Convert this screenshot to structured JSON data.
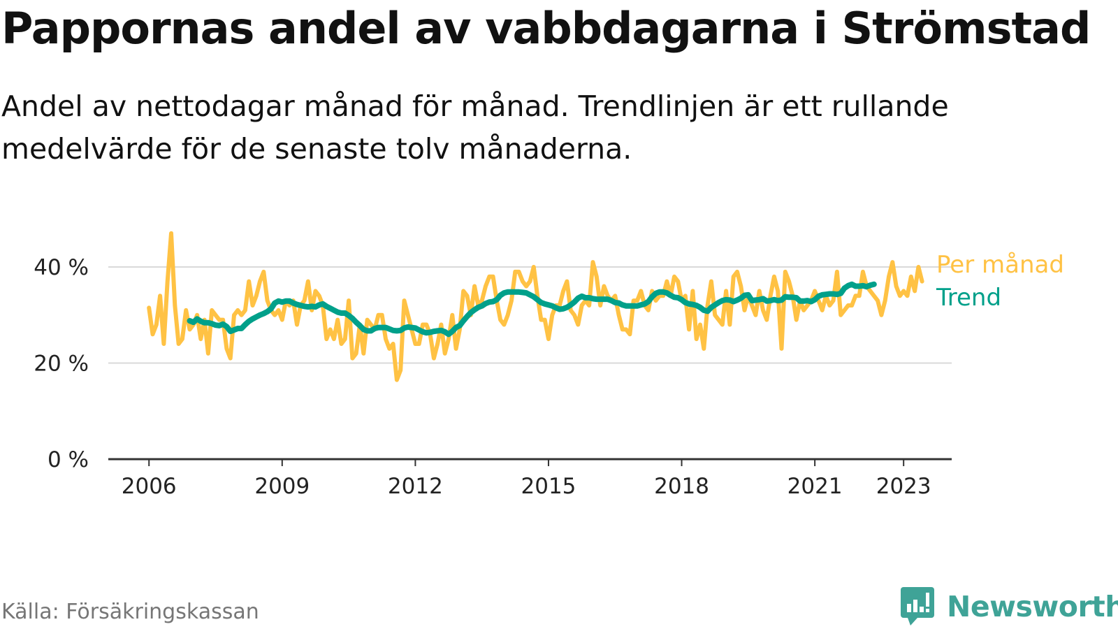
{
  "header": {
    "title": "Pappornas andel av vabbdagarna i Strömstad",
    "subtitle": "Andel av nettodagar månad för månad. Trendlinjen är ett rullande medelvärde för de senaste tolv månaderna."
  },
  "footer": {
    "source": "Källa: Försäkringskassan",
    "brand": "Newsworthy"
  },
  "colors": {
    "monthly": "#FFC244",
    "trend": "#00A08A",
    "grid": "#D9D9D9",
    "axis": "#333333",
    "brand": "#3FA397"
  },
  "chart_data": {
    "type": "line",
    "x_start": "2006-01",
    "x_unit": "month",
    "x_ticks": [
      "2006",
      "2009",
      "2012",
      "2015",
      "2018",
      "2021",
      "2023"
    ],
    "xlim": [
      "2005-02",
      "2024-02"
    ],
    "ylim": [
      0,
      40
    ],
    "y_ticks": [
      {
        "value": 0,
        "label": "0 %"
      },
      {
        "value": 20,
        "label": "20 %"
      },
      {
        "value": 40,
        "label": "40 %"
      }
    ],
    "grid": true,
    "legend": "direct-labels-right",
    "series": [
      {
        "name": "Per månad",
        "values": [
          31.5,
          26,
          28,
          34,
          24,
          37,
          47,
          32,
          24,
          25,
          31,
          27,
          28,
          30,
          25,
          29,
          22,
          31,
          30,
          29,
          29,
          23,
          21,
          30,
          31,
          30,
          31,
          37,
          32,
          34,
          37,
          39,
          33,
          31,
          30,
          31,
          29,
          33,
          32,
          33,
          28,
          32,
          33,
          37,
          31,
          35,
          34,
          32,
          25,
          27,
          25,
          29,
          24,
          25,
          33,
          21,
          22,
          28,
          22,
          29,
          28,
          27,
          30,
          30,
          25,
          23,
          24,
          16.5,
          18.5,
          33,
          30,
          27,
          24,
          24,
          28,
          28,
          26,
          21,
          24,
          28,
          22,
          25,
          30,
          23,
          27,
          35,
          34,
          30,
          36,
          32,
          33,
          36,
          38,
          38,
          33,
          29,
          28,
          30,
          33,
          39,
          39,
          37,
          36,
          37,
          40,
          34,
          29,
          29,
          25,
          30,
          32,
          32,
          35,
          37,
          31,
          30,
          28,
          32,
          33,
          32,
          41,
          38,
          32,
          36,
          34,
          33,
          34,
          30,
          27,
          27,
          26,
          33,
          33,
          35,
          32,
          31,
          35,
          33,
          34,
          34,
          37,
          34,
          38,
          37,
          33,
          34,
          27,
          35,
          25,
          28,
          23,
          32,
          37,
          30,
          29,
          28,
          35,
          28,
          38,
          39,
          36,
          31,
          34,
          32,
          30,
          35,
          31,
          29,
          34,
          38,
          35,
          23,
          39,
          37,
          34,
          29,
          33,
          31,
          32,
          33,
          35,
          33,
          31,
          34,
          32,
          33,
          39,
          30,
          31,
          32,
          32,
          34,
          34,
          39,
          36,
          35,
          34,
          33,
          30,
          33,
          38,
          41,
          36,
          34,
          35,
          34,
          38,
          35,
          40,
          37
        ],
        "color": "#FFC244"
      },
      {
        "name": "Trend",
        "start": "2006-12",
        "values": [
          28.8,
          28.5,
          29.2,
          28.7,
          28.4,
          28.4,
          28.2,
          27.9,
          27.8,
          28.1,
          27.6,
          26.6,
          26.9,
          27.2,
          27.2,
          28,
          28.7,
          29.2,
          29.6,
          30,
          30.3,
          30.7,
          31.3,
          32.5,
          32.9,
          32.7,
          32.9,
          32.9,
          32.5,
          32.2,
          32,
          31.8,
          31.7,
          31.8,
          31.7,
          32.1,
          32.3,
          31.8,
          31.4,
          31,
          30.6,
          30.4,
          30.4,
          29.9,
          29.3,
          28.5,
          27.8,
          27,
          26.7,
          26.7,
          27.2,
          27.4,
          27.4,
          27.4,
          27.1,
          26.8,
          26.7,
          26.8,
          27.3,
          27.5,
          27.4,
          27.3,
          26.9,
          26.5,
          26.3,
          26.4,
          26.6,
          26.7,
          26.8,
          26.5,
          26,
          26.6,
          27.4,
          27.8,
          28.8,
          29.7,
          30.5,
          31.1,
          31.6,
          31.9,
          32.4,
          32.7,
          32.8,
          33.2,
          34.1,
          34.6,
          34.8,
          34.8,
          34.8,
          34.8,
          34.7,
          34.6,
          34.2,
          33.8,
          33.2,
          32.6,
          32.3,
          32.1,
          31.9,
          31.5,
          31.2,
          31.3,
          31.6,
          32.1,
          32.7,
          33.5,
          33.9,
          33.6,
          33.6,
          33.4,
          33.3,
          33.3,
          33.3,
          33.3,
          33,
          32.6,
          32.5,
          32.1,
          31.9,
          31.9,
          31.9,
          31.9,
          32.1,
          32.3,
          32.8,
          33.8,
          34.5,
          34.8,
          34.8,
          34.6,
          34.1,
          33.7,
          33.6,
          33.2,
          32.6,
          32.3,
          32.2,
          32,
          31.6,
          31,
          30.8,
          31.6,
          32.1,
          32.6,
          33,
          33.2,
          33.1,
          32.8,
          33.1,
          33.5,
          34.1,
          34.2,
          33,
          33.1,
          33.2,
          33.4,
          32.9,
          33,
          33.2,
          33,
          33.1,
          33.8,
          33.7,
          33.7,
          33.6,
          32.9,
          32.9,
          33,
          32.8,
          33.2,
          33.9,
          34.2,
          34.3,
          34.4,
          34.4,
          34.3,
          34.5,
          35.6,
          36.1,
          36.4,
          36,
          36,
          36.1,
          35.9,
          36.2,
          36.4
        ],
        "color": "#00A08A"
      }
    ]
  }
}
